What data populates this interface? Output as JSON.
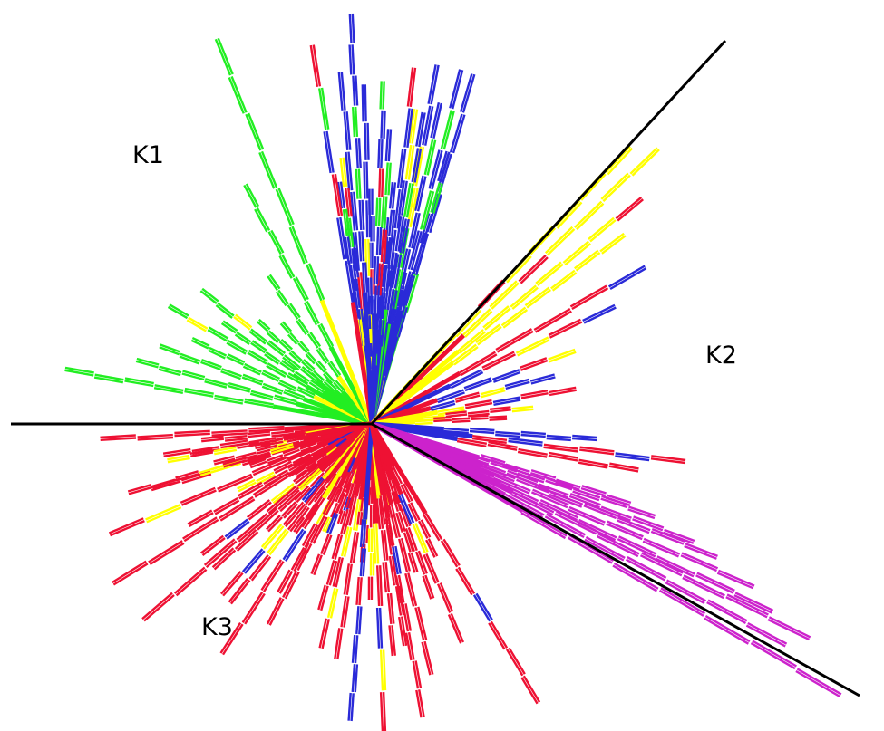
{
  "clusters": [
    {
      "id": "k1",
      "label": "K1"
    },
    {
      "id": "k2",
      "label": "K2"
    },
    {
      "id": "k3",
      "label": "K3"
    }
  ],
  "colors": {
    "green": "#22ee22",
    "blue": "#2a2ad8",
    "yellow": "#ffff00",
    "red": "#ee1133",
    "magenta": "#cc22cc",
    "separator": "#000000"
  }
}
